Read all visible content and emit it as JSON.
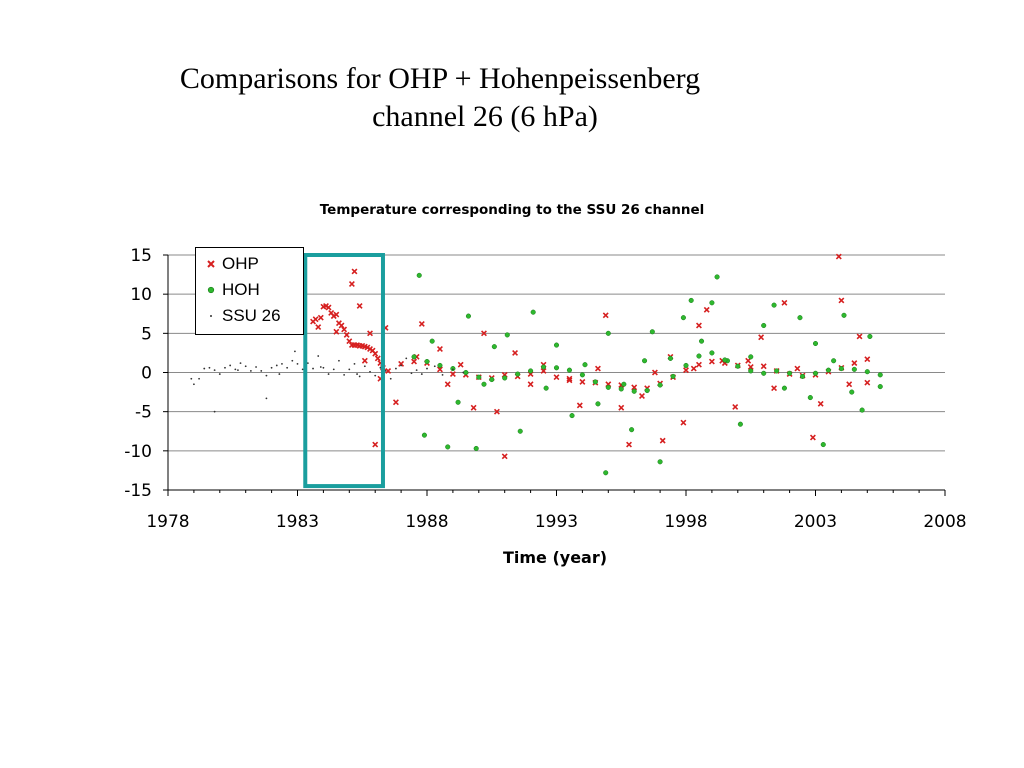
{
  "slide": {
    "title_line1": "Comparisons for OHP + Hohenpeissenberg",
    "title_line2": "channel 26 (6 hPa)"
  },
  "chart_data": {
    "type": "scatter",
    "title": "Temperature corresponding to the SSU 26 channel",
    "xlabel": "Time (year)",
    "ylabel": "",
    "xlim": [
      1978,
      2008
    ],
    "ylim": [
      -15,
      15
    ],
    "x_ticks": [
      1978,
      1983,
      1988,
      1993,
      1998,
      2003,
      2008
    ],
    "y_ticks": [
      15,
      10,
      5,
      0,
      -5,
      -10,
      -15
    ],
    "grid": "horizontal",
    "legend_position": "top-left",
    "highlight_box": {
      "x_range": [
        1983.3,
        1986.3
      ],
      "y_range": [
        -14.5,
        15
      ],
      "color": "#1a9e9e"
    },
    "series": [
      {
        "name": "OHP",
        "marker": "x",
        "color": "#d62020",
        "points": [
          [
            1983.6,
            6.5
          ],
          [
            1983.7,
            6.8
          ],
          [
            1983.8,
            5.8
          ],
          [
            1983.9,
            7.0
          ],
          [
            1984.0,
            8.4
          ],
          [
            1984.1,
            8.5
          ],
          [
            1984.2,
            8.3
          ],
          [
            1984.3,
            7.6
          ],
          [
            1984.4,
            7.2
          ],
          [
            1984.5,
            7.4
          ],
          [
            1984.6,
            6.3
          ],
          [
            1984.7,
            6.0
          ],
          [
            1984.8,
            5.5
          ],
          [
            1984.9,
            4.8
          ],
          [
            1985.0,
            4.0
          ],
          [
            1985.1,
            3.5
          ],
          [
            1985.2,
            3.5
          ],
          [
            1985.3,
            3.5
          ],
          [
            1985.4,
            3.4
          ],
          [
            1985.5,
            3.4
          ],
          [
            1985.6,
            3.3
          ],
          [
            1985.7,
            3.2
          ],
          [
            1985.8,
            3.0
          ],
          [
            1985.9,
            2.8
          ],
          [
            1986.0,
            2.4
          ],
          [
            1986.1,
            1.8
          ],
          [
            1986.2,
            1.2
          ],
          [
            1986.3,
            0.6
          ],
          [
            1984.5,
            5.2
          ],
          [
            1985.1,
            11.3
          ],
          [
            1985.2,
            12.9
          ],
          [
            1985.4,
            8.5
          ],
          [
            1985.6,
            1.5
          ],
          [
            1985.8,
            5.0
          ],
          [
            1986.0,
            -9.2
          ],
          [
            1986.2,
            -0.8
          ],
          [
            1986.4,
            5.7
          ],
          [
            1986.8,
            -3.8
          ],
          [
            1987.6,
            2.0
          ],
          [
            1987.8,
            6.2
          ],
          [
            1988.5,
            3.0
          ],
          [
            1988.8,
            -1.5
          ],
          [
            1989.3,
            1.0
          ],
          [
            1989.8,
            -4.5
          ],
          [
            1990.2,
            5.0
          ],
          [
            1990.7,
            -5.0
          ],
          [
            1991.0,
            -10.7
          ],
          [
            1991.4,
            2.5
          ],
          [
            1992.0,
            -1.5
          ],
          [
            1992.5,
            1.0
          ],
          [
            1993.5,
            -1.0
          ],
          [
            1993.9,
            -4.2
          ],
          [
            1994.6,
            0.5
          ],
          [
            1994.9,
            7.3
          ],
          [
            1995.5,
            -4.5
          ],
          [
            1995.8,
            -9.2
          ],
          [
            1996.3,
            -3.0
          ],
          [
            1996.8,
            0.0
          ],
          [
            1997.1,
            -8.7
          ],
          [
            1997.4,
            2.0
          ],
          [
            1997.9,
            -6.4
          ],
          [
            1998.3,
            0.5
          ],
          [
            1998.5,
            6.0
          ],
          [
            1998.8,
            8.0
          ],
          [
            1999.4,
            1.5
          ],
          [
            1999.9,
            -4.4
          ],
          [
            2000.4,
            1.5
          ],
          [
            2000.9,
            4.5
          ],
          [
            2001.4,
            -2.0
          ],
          [
            2001.8,
            8.9
          ],
          [
            2002.3,
            0.5
          ],
          [
            2002.9,
            -8.3
          ],
          [
            2003.2,
            -4.0
          ],
          [
            2003.9,
            14.8
          ],
          [
            2004.0,
            9.2
          ],
          [
            2004.3,
            -1.5
          ],
          [
            2004.7,
            4.6
          ],
          [
            2005.0,
            -1.3
          ],
          [
            1986.5,
            0.2
          ],
          [
            1987.0,
            1.1
          ],
          [
            1987.5,
            1.4
          ],
          [
            1988.0,
            1.2
          ],
          [
            1988.5,
            0.4
          ],
          [
            1989.0,
            -0.2
          ],
          [
            1989.5,
            -0.3
          ],
          [
            1990.0,
            -0.6
          ],
          [
            1990.5,
            -0.7
          ],
          [
            1991.0,
            -0.3
          ],
          [
            1991.5,
            -0.5
          ],
          [
            1992.0,
            -0.2
          ],
          [
            1992.5,
            0.2
          ],
          [
            1993.0,
            -0.6
          ],
          [
            1993.5,
            -0.8
          ],
          [
            1994.0,
            -1.2
          ],
          [
            1994.5,
            -1.3
          ],
          [
            1995.0,
            -1.5
          ],
          [
            1995.5,
            -1.6
          ],
          [
            1996.0,
            -1.9
          ],
          [
            1996.5,
            -2.0
          ],
          [
            1997.0,
            -1.4
          ],
          [
            1997.5,
            -0.6
          ],
          [
            1998.0,
            0.3
          ],
          [
            1998.5,
            1.0
          ],
          [
            1999.0,
            1.4
          ],
          [
            1999.5,
            1.2
          ],
          [
            2000.0,
            0.9
          ],
          [
            2000.5,
            0.7
          ],
          [
            2001.0,
            0.8
          ],
          [
            2001.5,
            0.2
          ],
          [
            2002.0,
            -0.2
          ],
          [
            2002.5,
            -0.4
          ],
          [
            2003.0,
            -0.3
          ],
          [
            2003.5,
            0.1
          ],
          [
            2004.0,
            0.6
          ],
          [
            2004.5,
            1.2
          ],
          [
            2005.0,
            1.7
          ]
        ]
      },
      {
        "name": "HOH",
        "marker": "circle",
        "color": "#2eb82e",
        "points": [
          [
            1987.7,
            12.4
          ],
          [
            1987.9,
            -8.0
          ],
          [
            1988.2,
            4.0
          ],
          [
            1988.8,
            -9.5
          ],
          [
            1989.2,
            -3.8
          ],
          [
            1989.6,
            7.2
          ],
          [
            1989.9,
            -9.7
          ],
          [
            1990.2,
            -1.5
          ],
          [
            1990.6,
            3.3
          ],
          [
            1991.1,
            4.8
          ],
          [
            1991.6,
            -7.5
          ],
          [
            1992.1,
            7.7
          ],
          [
            1992.6,
            -2.0
          ],
          [
            1993.0,
            3.5
          ],
          [
            1993.6,
            -5.5
          ],
          [
            1994.1,
            1.0
          ],
          [
            1994.6,
            -4.0
          ],
          [
            1994.9,
            -12.8
          ],
          [
            1995.0,
            5.0
          ],
          [
            1995.6,
            -1.5
          ],
          [
            1995.9,
            -7.3
          ],
          [
            1996.4,
            1.5
          ],
          [
            1996.7,
            5.2
          ],
          [
            1997.0,
            -11.4
          ],
          [
            1997.4,
            1.8
          ],
          [
            1997.9,
            7.0
          ],
          [
            1998.2,
            9.2
          ],
          [
            1998.6,
            4.0
          ],
          [
            1999.0,
            8.9
          ],
          [
            1999.2,
            12.2
          ],
          [
            1999.6,
            1.5
          ],
          [
            2000.1,
            -6.6
          ],
          [
            2000.5,
            2.0
          ],
          [
            2001.0,
            6.0
          ],
          [
            2001.4,
            8.6
          ],
          [
            2001.8,
            -2.0
          ],
          [
            2002.4,
            7.0
          ],
          [
            2002.8,
            -3.2
          ],
          [
            2003.0,
            3.7
          ],
          [
            2003.3,
            -9.2
          ],
          [
            2003.7,
            1.5
          ],
          [
            2004.1,
            7.3
          ],
          [
            2004.4,
            -2.5
          ],
          [
            2004.8,
            -4.8
          ],
          [
            2005.1,
            4.6
          ],
          [
            2005.5,
            -1.8
          ],
          [
            1987.5,
            2.0
          ],
          [
            1988.0,
            1.4
          ],
          [
            1988.5,
            0.9
          ],
          [
            1989.0,
            0.5
          ],
          [
            1989.5,
            0.0
          ],
          [
            1990.0,
            -0.6
          ],
          [
            1990.5,
            -0.9
          ],
          [
            1991.0,
            -0.7
          ],
          [
            1991.5,
            -0.2
          ],
          [
            1992.0,
            0.2
          ],
          [
            1992.5,
            0.7
          ],
          [
            1993.0,
            0.6
          ],
          [
            1993.5,
            0.3
          ],
          [
            1994.0,
            -0.3
          ],
          [
            1994.5,
            -1.2
          ],
          [
            1995.0,
            -1.9
          ],
          [
            1995.5,
            -2.1
          ],
          [
            1996.0,
            -2.4
          ],
          [
            1996.5,
            -2.3
          ],
          [
            1997.0,
            -1.6
          ],
          [
            1997.5,
            -0.5
          ],
          [
            1998.0,
            0.9
          ],
          [
            1998.5,
            2.1
          ],
          [
            1999.0,
            2.5
          ],
          [
            1999.5,
            1.6
          ],
          [
            2000.0,
            0.8
          ],
          [
            2000.5,
            0.2
          ],
          [
            2001.0,
            -0.1
          ],
          [
            2001.5,
            0.2
          ],
          [
            2002.0,
            -0.1
          ],
          [
            2002.5,
            -0.5
          ],
          [
            2003.0,
            -0.1
          ],
          [
            2003.5,
            0.3
          ],
          [
            2004.0,
            0.5
          ],
          [
            2004.5,
            0.4
          ],
          [
            2005.0,
            0.1
          ],
          [
            2005.5,
            -0.3
          ]
        ]
      },
      {
        "name": "SSU 26",
        "marker": "dot",
        "color": "#333333",
        "points": [
          [
            1979.0,
            -1.5
          ],
          [
            1979.2,
            -0.8
          ],
          [
            1979.4,
            0.5
          ],
          [
            1979.6,
            0.6
          ],
          [
            1979.8,
            0.3
          ],
          [
            1980.0,
            -0.2
          ],
          [
            1980.2,
            0.6
          ],
          [
            1980.4,
            0.9
          ],
          [
            1980.6,
            0.4
          ],
          [
            1980.8,
            1.2
          ],
          [
            1981.0,
            0.8
          ],
          [
            1981.2,
            0.2
          ],
          [
            1981.4,
            0.7
          ],
          [
            1981.6,
            0.2
          ],
          [
            1981.8,
            -0.4
          ],
          [
            1982.0,
            0.6
          ],
          [
            1982.2,
            0.9
          ],
          [
            1982.4,
            1.1
          ],
          [
            1982.6,
            0.6
          ],
          [
            1982.8,
            1.5
          ],
          [
            1983.0,
            1.1
          ],
          [
            1983.2,
            0.4
          ],
          [
            1983.4,
            1.2
          ],
          [
            1983.6,
            0.5
          ],
          [
            1983.8,
            2.1
          ],
          [
            1984.0,
            0.6
          ],
          [
            1984.2,
            -0.2
          ],
          [
            1984.4,
            0.4
          ],
          [
            1984.6,
            1.5
          ],
          [
            1984.8,
            -0.3
          ],
          [
            1985.0,
            0.4
          ],
          [
            1985.2,
            1.1
          ],
          [
            1985.4,
            -0.5
          ],
          [
            1985.6,
            0.8
          ],
          [
            1985.8,
            0.1
          ],
          [
            1986.0,
            -0.4
          ],
          [
            1986.2,
            0.6
          ],
          [
            1986.4,
            0.2
          ],
          [
            1986.6,
            -0.8
          ],
          [
            1986.8,
            0.5
          ],
          [
            1987.0,
            0.9
          ],
          [
            1987.2,
            1.8
          ],
          [
            1987.4,
            -0.1
          ],
          [
            1987.6,
            0.3
          ],
          [
            1987.8,
            -0.2
          ],
          [
            1988.0,
            0.5
          ],
          [
            1988.3,
            0.8
          ],
          [
            1988.6,
            -0.3
          ],
          [
            1989.0,
            0.4
          ],
          [
            1989.4,
            0.0
          ],
          [
            1979.8,
            -5.0
          ],
          [
            1981.8,
            -3.3
          ],
          [
            1982.3,
            -0.2
          ],
          [
            1980.7,
            0.3
          ],
          [
            1978.9,
            -0.8
          ],
          [
            1983.9,
            0.7
          ],
          [
            1982.9,
            2.7
          ],
          [
            1985.3,
            -0.2
          ]
        ]
      }
    ]
  }
}
